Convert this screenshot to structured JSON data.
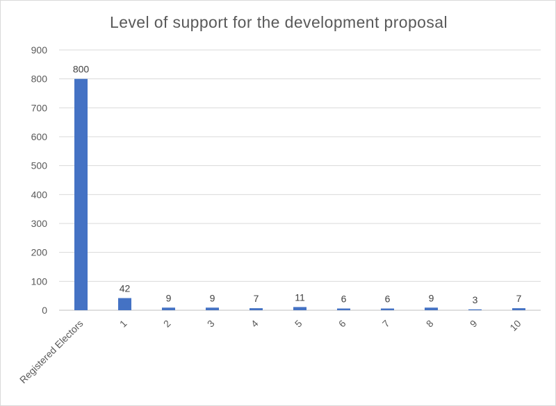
{
  "chart_data": {
    "type": "bar",
    "title": "Level of support for the development proposal",
    "categories": [
      "Registered Electors",
      "1",
      "2",
      "3",
      "4",
      "5",
      "6",
      "7",
      "8",
      "9",
      "10"
    ],
    "values": [
      800,
      42,
      9,
      9,
      7,
      11,
      6,
      6,
      9,
      3,
      7
    ],
    "ylim": [
      0,
      900
    ],
    "yticks": [
      0,
      100,
      200,
      300,
      400,
      500,
      600,
      700,
      800,
      900
    ],
    "grid": true,
    "legend": "none",
    "bar_color": "#4472C4",
    "data_labels": true
  }
}
